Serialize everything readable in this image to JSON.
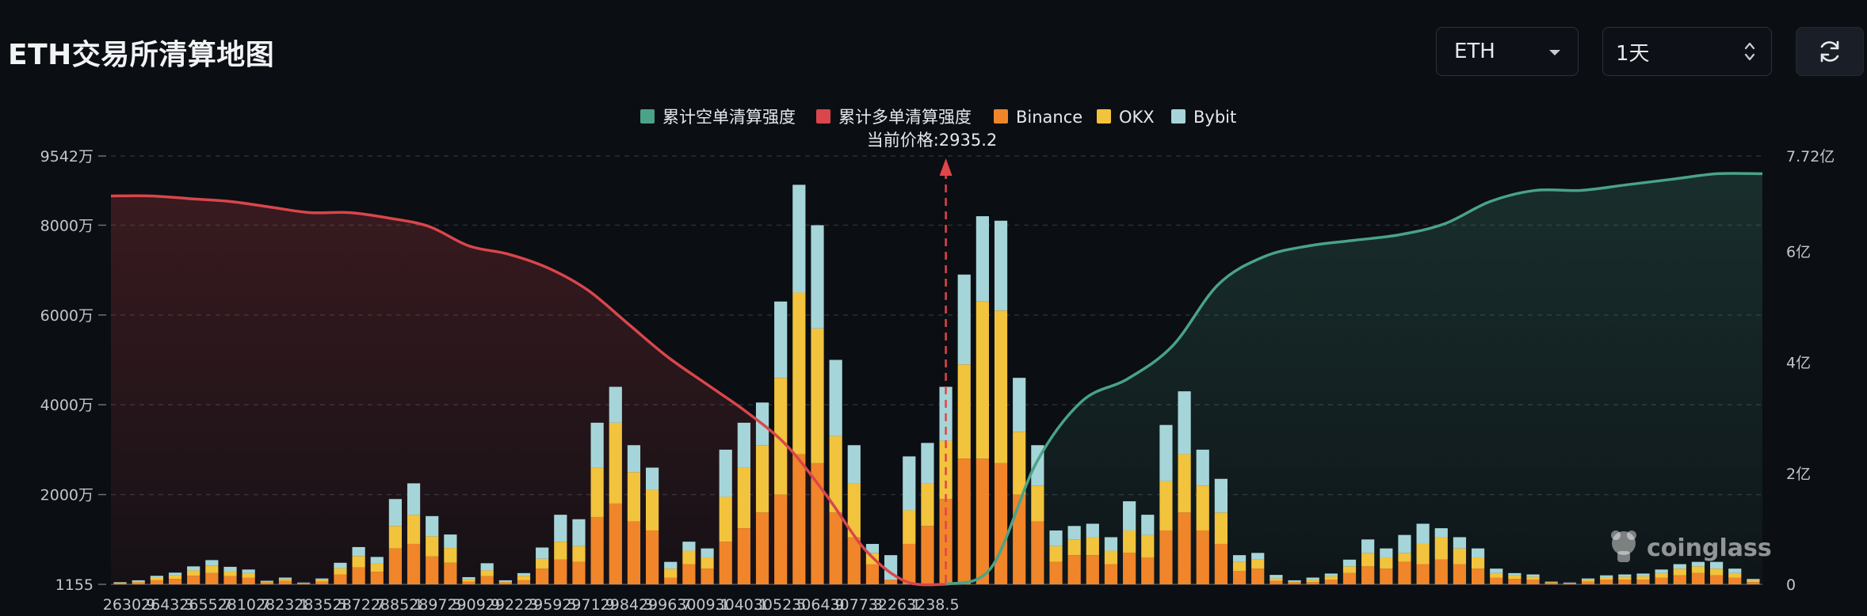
{
  "page": {
    "title": "ETH交易所清算地图"
  },
  "controls": {
    "coin": {
      "value": "ETH",
      "icon": "chevron-down-icon"
    },
    "range": {
      "value": "1天",
      "icon": "updown-arrows-icon"
    },
    "refresh": {
      "icon": "refresh-icon"
    }
  },
  "watermark": "coinglass",
  "colors": {
    "short_cum": "#4aa387",
    "long_cum": "#d9464b",
    "binance": "#f0852a",
    "okx": "#f2c33c",
    "bybit": "#a5d5d8",
    "price_line": "#e0454a"
  },
  "chart_data": {
    "type": "bar",
    "x_ticks": [
      "2630.9",
      "2643.3",
      "2655.7",
      "2810.7",
      "2823.1",
      "2835.5",
      "2872.7",
      "2885.1",
      "2897.5",
      "2909.9",
      "2922.3",
      "2959.5",
      "2971.9",
      "2984.3",
      "2996.7",
      "3009.1",
      "3040.1",
      "3052.5",
      "3064.9",
      "3077.3",
      "3226.1",
      "3238.5"
    ],
    "y_left_ticks": [
      "1155",
      "2000万",
      "4000万",
      "6000万",
      "8000万",
      "9542万"
    ],
    "y_left_values": [
      1155,
      20000000,
      40000000,
      60000000,
      80000000,
      95420000
    ],
    "y_left_range": [
      0,
      95420000
    ],
    "y_right_ticks": [
      "0",
      "2亿",
      "4亿",
      "6亿",
      "7.72亿"
    ],
    "y_right_values": [
      0,
      200000000,
      400000000,
      600000000,
      772000000
    ],
    "y_right_range": [
      0,
      772000000
    ],
    "current_price_label": "当前价格:2935.2",
    "current_price": 2935.2,
    "legend": [
      {
        "name": "累计空单清算强度",
        "color": "#4aa387"
      },
      {
        "name": "累计多单清算强度",
        "color": "#d9464b"
      },
      {
        "name": "Binance",
        "color": "#f0852a"
      },
      {
        "name": "OKX",
        "color": "#f2c33c"
      },
      {
        "name": "Bybit",
        "color": "#a5d5d8"
      }
    ],
    "bar_series_order": [
      "Binance",
      "OKX",
      "Bybit"
    ],
    "bars": [
      [
        0.2,
        0.2,
        0.1
      ],
      [
        0.4,
        0.3,
        0.2
      ],
      [
        0.9,
        0.6,
        0.4
      ],
      [
        1.2,
        0.8,
        0.6
      ],
      [
        1.9,
        1.2,
        0.9
      ],
      [
        2.5,
        1.7,
        1.2
      ],
      [
        1.8,
        1.2,
        0.9
      ],
      [
        1.5,
        1.0,
        0.8
      ],
      [
        0.4,
        0.2,
        0.2
      ],
      [
        0.8,
        0.4,
        0.3
      ],
      [
        0.2,
        0.1,
        0.1
      ],
      [
        0.6,
        0.4,
        0.3
      ],
      [
        2.2,
        1.4,
        1.2
      ],
      [
        3.8,
        2.5,
        2.0
      ],
      [
        2.8,
        1.8,
        1.5
      ],
      [
        8.0,
        5.0,
        6.0
      ],
      [
        9.0,
        6.5,
        7.0
      ],
      [
        6.2,
        4.5,
        4.5
      ],
      [
        4.8,
        3.3,
        3.0
      ],
      [
        0.6,
        0.5,
        0.5
      ],
      [
        1.8,
        1.3,
        1.6
      ],
      [
        0.4,
        0.3,
        0.2
      ],
      [
        0.9,
        1.0,
        0.6
      ],
      [
        3.5,
        2.2,
        2.5
      ],
      [
        5.5,
        4.0,
        6.0
      ],
      [
        5.0,
        3.5,
        6.0
      ],
      [
        15.0,
        11.0,
        10.0
      ],
      [
        18.0,
        18.0,
        8.0
      ],
      [
        14.0,
        11.0,
        6.0
      ],
      [
        12.0,
        9.0,
        5.0
      ],
      [
        1.5,
        2.0,
        1.5
      ],
      [
        4.5,
        3.0,
        2.0
      ],
      [
        3.5,
        2.5,
        2.0
      ],
      [
        9.5,
        10.0,
        10.5
      ],
      [
        12.5,
        13.5,
        10.0
      ],
      [
        16.0,
        15.0,
        9.5
      ],
      [
        20.0,
        26.0,
        17.0
      ],
      [
        29.0,
        36.0,
        24.0
      ],
      [
        27.0,
        30.0,
        23.0
      ],
      [
        16.0,
        17.0,
        17.0
      ],
      [
        10.5,
        12.0,
        8.5
      ],
      [
        4.5,
        2.5,
        2.0
      ],
      [
        1.0,
        0.0,
        5.5
      ],
      [
        9.0,
        7.5,
        12.0
      ],
      [
        13.0,
        9.5,
        9.0
      ],
      [
        19.0,
        13.0,
        12.0
      ],
      [
        28.0,
        21.0,
        20.0
      ],
      [
        28.0,
        35.0,
        19.0
      ],
      [
        27.0,
        34.0,
        20.0
      ],
      [
        20.0,
        14.0,
        12.0
      ],
      [
        14.0,
        8.0,
        9.0
      ],
      [
        5.0,
        3.5,
        3.5
      ],
      [
        6.5,
        3.5,
        3.0
      ],
      [
        6.5,
        4.0,
        3.0
      ],
      [
        4.5,
        3.0,
        3.0
      ],
      [
        7.0,
        5.0,
        6.5
      ],
      [
        6.0,
        5.0,
        4.5
      ],
      [
        12.0,
        11.0,
        12.5
      ],
      [
        16.0,
        13.0,
        14.0
      ],
      [
        12.0,
        10.0,
        8.0
      ],
      [
        9.0,
        7.0,
        7.5
      ],
      [
        3.0,
        2.0,
        1.5
      ],
      [
        3.5,
        2.0,
        1.5
      ],
      [
        0.8,
        0.5,
        0.8
      ],
      [
        0.4,
        0.3,
        0.2
      ],
      [
        0.5,
        0.5,
        0.5
      ],
      [
        1.0,
        0.8,
        0.6
      ],
      [
        2.5,
        1.5,
        1.5
      ],
      [
        4.0,
        3.0,
        3.0
      ],
      [
        3.5,
        2.5,
        2.0
      ],
      [
        5.0,
        2.0,
        4.0
      ],
      [
        4.5,
        4.5,
        4.5
      ],
      [
        5.5,
        5.0,
        2.0
      ],
      [
        4.5,
        3.5,
        2.5
      ],
      [
        3.5,
        2.5,
        2.0
      ],
      [
        1.5,
        1.0,
        1.0
      ],
      [
        1.2,
        0.8,
        0.5
      ],
      [
        1.0,
        0.7,
        0.5
      ],
      [
        0.3,
        0.2,
        0.1
      ],
      [
        0.2,
        0.1,
        0.1
      ],
      [
        0.6,
        0.4,
        0.3
      ],
      [
        1.0,
        0.6,
        0.4
      ],
      [
        1.0,
        0.7,
        0.5
      ],
      [
        1.0,
        0.8,
        0.6
      ],
      [
        1.5,
        1.0,
        0.8
      ],
      [
        2.0,
        1.5,
        1.0
      ],
      [
        2.5,
        1.5,
        1.0
      ],
      [
        2.0,
        1.5,
        1.5
      ],
      [
        1.5,
        1.0,
        1.0
      ],
      [
        0.5,
        0.4,
        0.3
      ]
    ],
    "long_cumulative_yi": [
      7.0,
      7.0,
      6.95,
      6.9,
      6.8,
      6.7,
      6.7,
      6.6,
      6.45,
      6.1,
      5.95,
      5.7,
      5.3,
      4.7,
      4.1,
      3.6,
      3.1,
      2.5,
      1.6,
      0.6,
      0.05,
      0.0
    ],
    "short_cumulative_yi": [
      0.0,
      0.3,
      2.2,
      3.3,
      3.7,
      4.3,
      5.4,
      5.9,
      6.1,
      6.2,
      6.3,
      6.5,
      6.9,
      7.1,
      7.1,
      7.2,
      7.3,
      7.4,
      7.4
    ]
  }
}
